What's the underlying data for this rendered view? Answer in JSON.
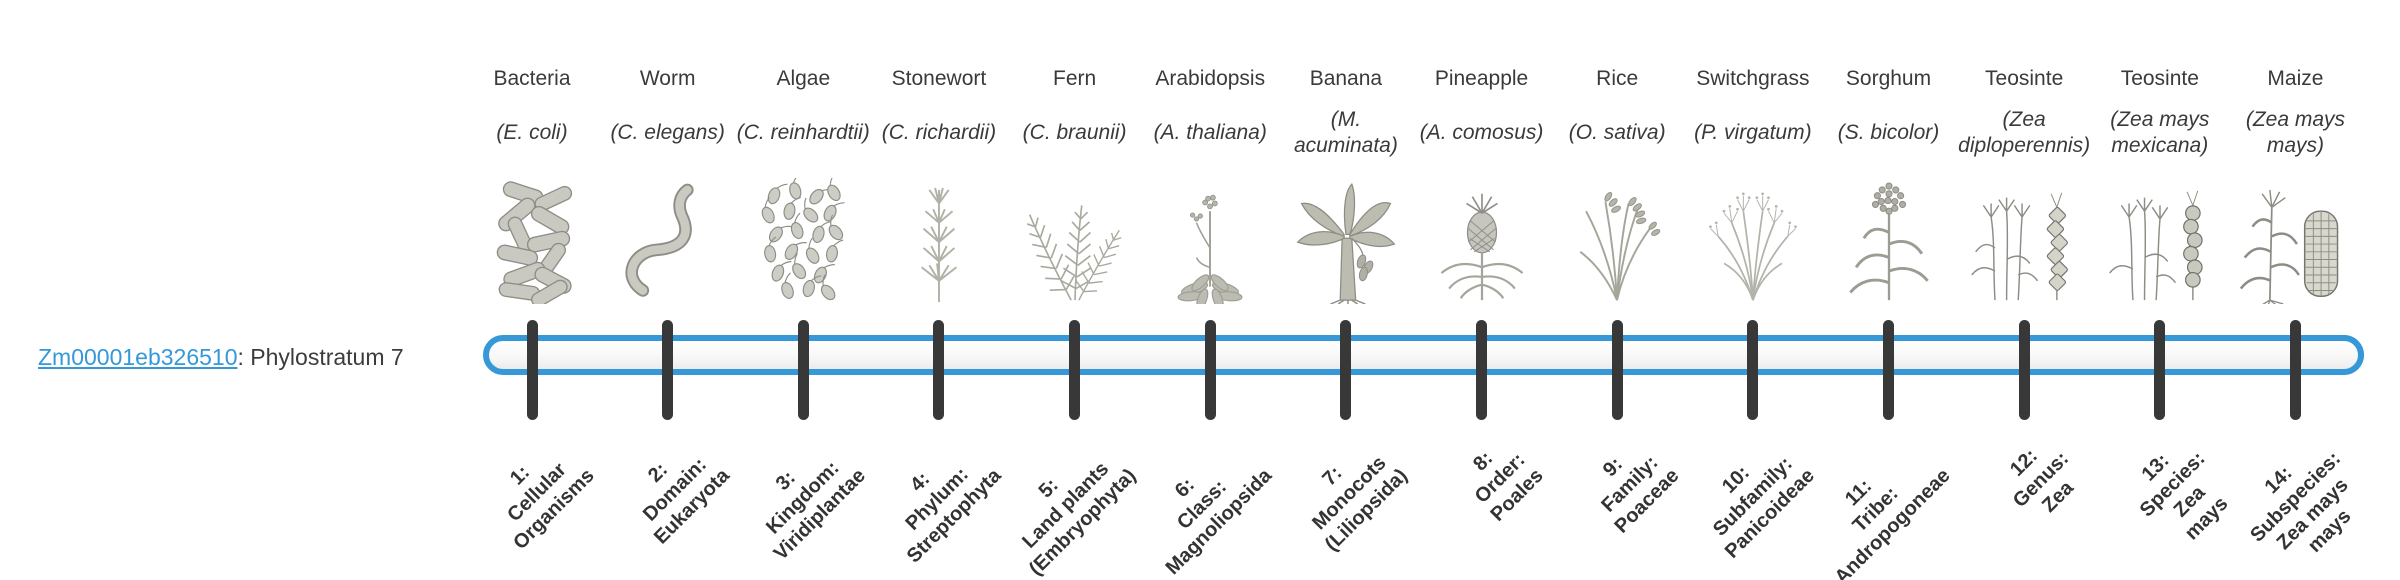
{
  "page": {
    "background": "#ffffff"
  },
  "gene": {
    "id": "Zm00001eb326510",
    "suffix": ": Phylostratum 7"
  },
  "timeline": {
    "total_strata": 14,
    "filled_from_stratum": 7,
    "bar_color": "#3798d8",
    "track_color": "#f5f5f5",
    "tick_color": "#383838",
    "link_color": "#3598d9"
  },
  "organisms": [
    {
      "common": "Bacteria",
      "scientific": "(E. coli)",
      "stratum_label": "1:\nCellular\nOrganisms",
      "icon": "bacteria-icon"
    },
    {
      "common": "Worm",
      "scientific": "(C. elegans)",
      "stratum_label": "2:\nDomain:\nEukaryota",
      "icon": "worm-icon"
    },
    {
      "common": "Algae",
      "scientific": "(C. reinhardtii)",
      "stratum_label": "3:\nKingdom:\nViridiplantae",
      "icon": "algae-icon"
    },
    {
      "common": "Stonewort",
      "scientific": "(C. richardii)",
      "stratum_label": "4:\nPhylum:\nStreptophyta",
      "icon": "stonewort-icon"
    },
    {
      "common": "Fern",
      "scientific": "(C. braunii)",
      "stratum_label": "5:\nLand plants\n(Embryophyta)",
      "icon": "fern-icon"
    },
    {
      "common": "Arabidopsis",
      "scientific": "(A. thaliana)",
      "stratum_label": "6:\nClass:\nMagnoliopsida",
      "icon": "arabidopsis-icon"
    },
    {
      "common": "Banana",
      "scientific": "(M. acuminata)",
      "stratum_label": "7:\nMonocots\n(Liliopsida)",
      "icon": "banana-icon"
    },
    {
      "common": "Pineapple",
      "scientific": "(A. comosus)",
      "stratum_label": "8:\nOrder:\nPoales",
      "icon": "pineapple-icon"
    },
    {
      "common": "Rice",
      "scientific": "(O. sativa)",
      "stratum_label": "9:\nFamily:\nPoaceae",
      "icon": "rice-icon"
    },
    {
      "common": "Switchgrass",
      "scientific": "(P. virgatum)",
      "stratum_label": "10:\nSubfamily:\nPanicoideae",
      "icon": "switchgrass-icon"
    },
    {
      "common": "Sorghum",
      "scientific": "(S. bicolor)",
      "stratum_label": "11:\nTribe:\nAndropogoneae",
      "icon": "sorghum-icon"
    },
    {
      "common": "Teosinte",
      "scientific": "(Zea diploperennis)",
      "stratum_label": "12:\nGenus:\nZea",
      "icon": "teosinte-diploperennis-icon"
    },
    {
      "common": "Teosinte",
      "scientific": "(Zea mays mexicana)",
      "stratum_label": "13:\nSpecies:\nZea\nmays",
      "icon": "teosinte-mexicana-icon"
    },
    {
      "common": "Maize",
      "scientific": "(Zea mays mays)",
      "stratum_label": "14:\nSubspecies:\nZea mays\nmays",
      "icon": "maize-icon"
    }
  ]
}
